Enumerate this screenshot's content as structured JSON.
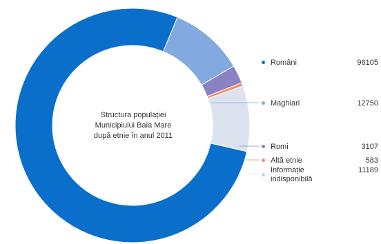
{
  "chart_data": {
    "type": "pie",
    "title_lines": [
      "Structura populației",
      "Municipiului Baia Mare",
      "după etnie în anul 2011"
    ],
    "categories": [
      "Români",
      "Maghiari",
      "Romi",
      "Altă etnie",
      "Informație indisponibilă"
    ],
    "label_lines": [
      [
        "Români"
      ],
      [
        "Maghiari"
      ],
      [
        "Romi"
      ],
      [
        "Altă etnie"
      ],
      [
        "Informație",
        "indisponibilă"
      ]
    ],
    "values": [
      96105,
      12750,
      3107,
      583,
      11189
    ],
    "colors": [
      "#0a6fca",
      "#82a9e0",
      "#8a82c2",
      "#f08f6f",
      "#dde3ee"
    ],
    "legend_placement": "right",
    "donut": true
  }
}
